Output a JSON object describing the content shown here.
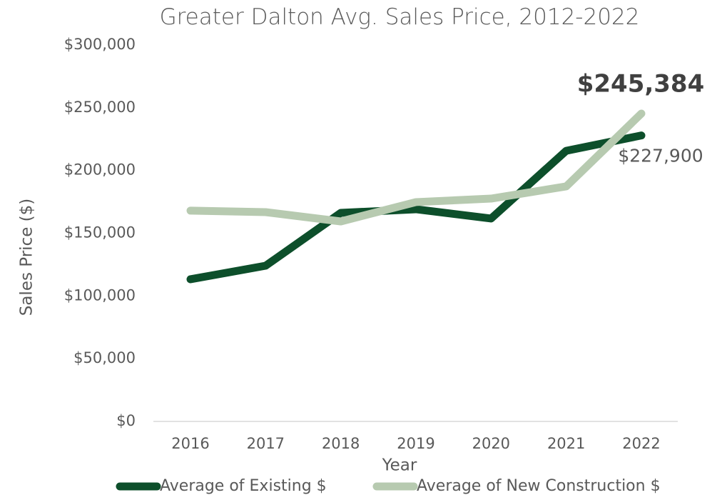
{
  "chart_data": {
    "type": "line",
    "title": "Greater Dalton Avg. Sales Price, 2012-2022",
    "x_label": "Year",
    "y_label": "Sales Price ($)",
    "categories": [
      "2016",
      "2017",
      "2018",
      "2019",
      "2020",
      "2021",
      "2022"
    ],
    "series": [
      {
        "name": "Average of Existing $",
        "color": "#0d4f2b",
        "values": [
          113300,
          124100,
          166200,
          169100,
          161700,
          215700,
          227900
        ],
        "value_labels": [
          null,
          null,
          null,
          null,
          null,
          null,
          "$227,900"
        ]
      },
      {
        "name": "Average of New Construction $",
        "color": "#b7cab0",
        "values": [
          168000,
          166800,
          159400,
          174800,
          177600,
          187300,
          245384
        ],
        "value_labels": [
          null,
          null,
          null,
          null,
          null,
          null,
          "$245,384"
        ]
      }
    ],
    "ylim": [
      0,
      300000
    ],
    "yticks": [
      {
        "value": 0,
        "label": "$0"
      },
      {
        "value": 50000,
        "label": "$50,000"
      },
      {
        "value": 100000,
        "label": "$100,000"
      },
      {
        "value": 150000,
        "label": "$150,000"
      },
      {
        "value": 200000,
        "label": "$200,000"
      },
      {
        "value": 250000,
        "label": "$250,000"
      },
      {
        "value": 300000,
        "label": "$300,000"
      }
    ],
    "grid": false,
    "legend": "bottom"
  }
}
